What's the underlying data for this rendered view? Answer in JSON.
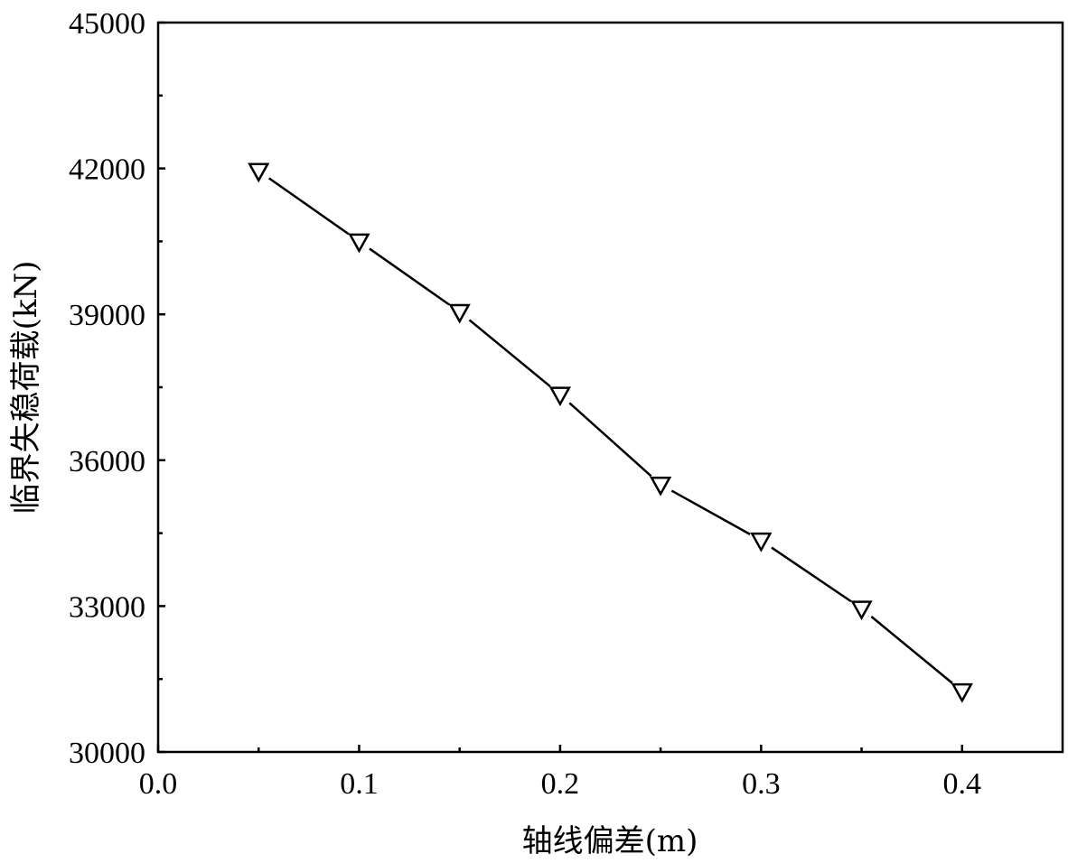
{
  "chart_data": {
    "type": "line",
    "title": "",
    "xlabel": "轴线偏差(m)",
    "ylabel": "临界失稳荷载(kN)",
    "xlim": [
      0.0,
      0.45
    ],
    "ylim": [
      30000,
      45000
    ],
    "x_ticks": [
      "0.0",
      "0.1",
      "0.2",
      "0.3",
      "0.4"
    ],
    "y_ticks": [
      "30000",
      "33000",
      "36000",
      "39000",
      "42000",
      "45000"
    ],
    "x_minor_ticks": [
      0.05,
      0.15,
      0.25,
      0.35
    ],
    "y_minor_ticks": [
      31500,
      34500,
      37500,
      40500,
      43500
    ],
    "grid": false,
    "legend": "none",
    "marker": "triangle-down-open",
    "series": [
      {
        "x": [
          0.05,
          0.1,
          0.15,
          0.2,
          0.25,
          0.3,
          0.35,
          0.4
        ],
        "values": [
          41950,
          40500,
          39050,
          37350,
          35500,
          34350,
          32950,
          31250
        ]
      }
    ]
  }
}
